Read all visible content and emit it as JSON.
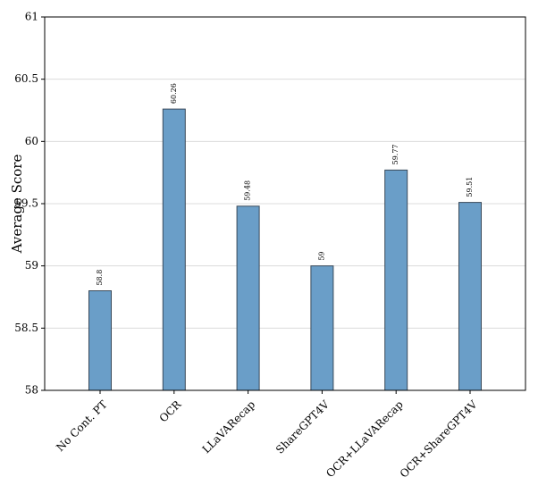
{
  "chart_data": {
    "type": "bar",
    "y_label": "Average Score",
    "categories": [
      "No Cont. PT",
      "OCR",
      "LLaVARecap",
      "ShareGPT4V",
      "OCR+LLaVARecap",
      "OCR+ShareGPT4V"
    ],
    "values": [
      58.8,
      60.26,
      59.48,
      59,
      59.77,
      59.51
    ],
    "color": "#6a9ec8",
    "ylim": [
      58,
      61
    ],
    "yticks": [
      58,
      58.5,
      59,
      59.5,
      60,
      60.5,
      61
    ],
    "grid": true
  }
}
